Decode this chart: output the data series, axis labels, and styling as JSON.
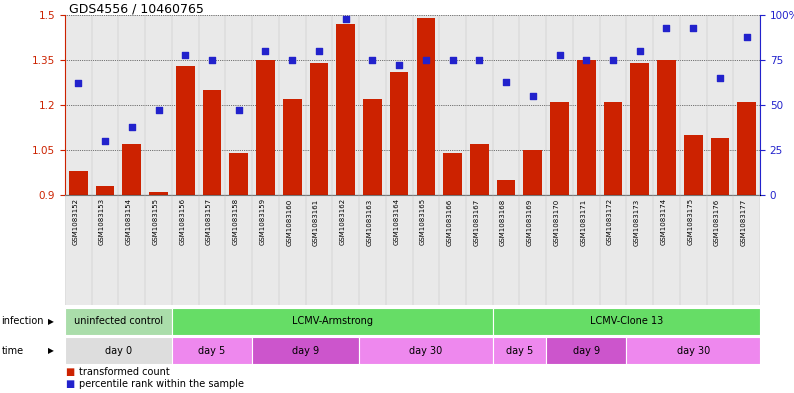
{
  "title": "GDS4556 / 10460765",
  "samples": [
    "GSM1083152",
    "GSM1083153",
    "GSM1083154",
    "GSM1083155",
    "GSM1083156",
    "GSM1083157",
    "GSM1083158",
    "GSM1083159",
    "GSM1083160",
    "GSM1083161",
    "GSM1083162",
    "GSM1083163",
    "GSM1083164",
    "GSM1083165",
    "GSM1083166",
    "GSM1083167",
    "GSM1083168",
    "GSM1083169",
    "GSM1083170",
    "GSM1083171",
    "GSM1083172",
    "GSM1083173",
    "GSM1083174",
    "GSM1083175",
    "GSM1083176",
    "GSM1083177"
  ],
  "bar_values": [
    0.98,
    0.93,
    1.07,
    0.91,
    1.33,
    1.25,
    1.04,
    1.35,
    1.22,
    1.34,
    1.47,
    1.22,
    1.31,
    1.49,
    1.04,
    1.07,
    0.95,
    1.05,
    1.21,
    1.35,
    1.21,
    1.34,
    1.35,
    1.1,
    1.09,
    1.21
  ],
  "dot_values": [
    62,
    30,
    38,
    47,
    78,
    75,
    47,
    80,
    75,
    80,
    98,
    75,
    72,
    75,
    75,
    75,
    63,
    55,
    78,
    75,
    75,
    80,
    93,
    93,
    65,
    88
  ],
  "bar_color": "#cc2200",
  "dot_color": "#2222cc",
  "ylim_left": [
    0.9,
    1.5
  ],
  "ylim_right": [
    0,
    100
  ],
  "yticks_left": [
    0.9,
    1.05,
    1.2,
    1.35,
    1.5
  ],
  "ytick_labels_left": [
    "0.9",
    "1.05",
    "1.2",
    "1.35",
    "1.5"
  ],
  "yticks_right": [
    0,
    25,
    50,
    75,
    100
  ],
  "ytick_labels_right": [
    "0",
    "25",
    "50",
    "75",
    "100%"
  ],
  "infection_groups": [
    {
      "label": "uninfected control",
      "start": 0,
      "end": 4,
      "color": "#aaddaa"
    },
    {
      "label": "LCMV-Armstrong",
      "start": 4,
      "end": 16,
      "color": "#66dd66"
    },
    {
      "label": "LCMV-Clone 13",
      "start": 16,
      "end": 26,
      "color": "#66dd66"
    }
  ],
  "time_groups": [
    {
      "label": "day 0",
      "start": 0,
      "end": 4,
      "color": "#dddddd"
    },
    {
      "label": "day 5",
      "start": 4,
      "end": 7,
      "color": "#ee88ee"
    },
    {
      "label": "day 9",
      "start": 7,
      "end": 11,
      "color": "#cc55cc"
    },
    {
      "label": "day 30",
      "start": 11,
      "end": 16,
      "color": "#ee88ee"
    },
    {
      "label": "day 5",
      "start": 16,
      "end": 18,
      "color": "#ee88ee"
    },
    {
      "label": "day 9",
      "start": 18,
      "end": 21,
      "color": "#cc55cc"
    },
    {
      "label": "day 30",
      "start": 21,
      "end": 26,
      "color": "#ee88ee"
    }
  ],
  "background_color": "#ffffff",
  "left_axis_color": "#cc2200",
  "right_axis_color": "#2222cc",
  "sample_bg": "#d8d8d8"
}
